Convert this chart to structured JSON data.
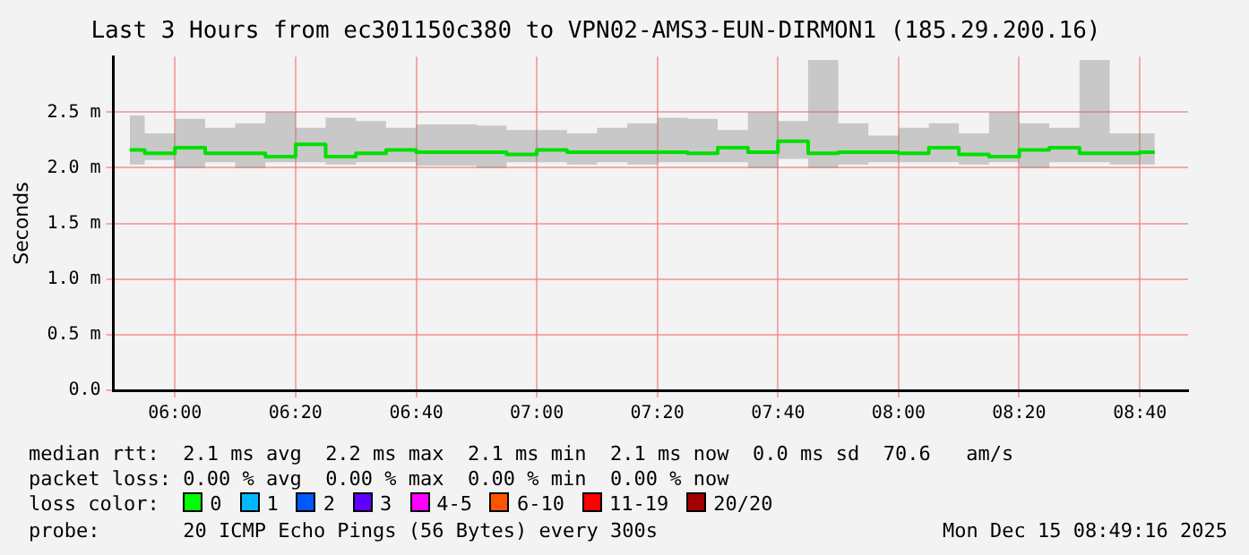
{
  "chart_data": {
    "type": "step",
    "title": "Last 3 Hours from ec301150c380 to VPN02-AMS3-EUN-DIRMON1 (185.29.200.16)",
    "ylabel": "Seconds",
    "x": [
      5.875,
      5.958,
      6.042,
      6.125,
      6.208,
      6.292,
      6.375,
      6.458,
      6.542,
      6.625,
      6.708,
      6.792,
      6.875,
      6.958,
      7.042,
      7.125,
      7.208,
      7.292,
      7.375,
      7.458,
      7.542,
      7.625,
      7.708,
      7.792,
      7.875,
      7.958,
      8.042,
      8.125,
      8.208,
      8.292,
      8.375,
      8.458,
      8.542,
      8.625,
      8.708
    ],
    "series": [
      {
        "color": "#00e000",
        "values": [
          2.16,
          2.13,
          2.18,
          2.13,
          2.13,
          2.1,
          2.21,
          2.1,
          2.13,
          2.16,
          2.14,
          2.14,
          2.14,
          2.12,
          2.16,
          2.14,
          2.14,
          2.14,
          2.14,
          2.13,
          2.18,
          2.14,
          2.24,
          2.13,
          2.14,
          2.14,
          2.13,
          2.18,
          2.12,
          2.1,
          2.16,
          2.18,
          2.13,
          2.13,
          2.14
        ],
        "lower": [
          2.03,
          2.07,
          2.0,
          2.05,
          2.0,
          2.05,
          2.05,
          2.03,
          2.05,
          2.05,
          2.02,
          2.02,
          2.0,
          2.05,
          2.05,
          2.03,
          2.05,
          2.03,
          2.05,
          2.05,
          2.05,
          2.0,
          2.08,
          2.0,
          2.03,
          2.05,
          2.05,
          2.05,
          2.03,
          2.05,
          2.0,
          2.05,
          2.05,
          2.03,
          2.03
        ],
        "upper": [
          2.47,
          2.31,
          2.44,
          2.36,
          2.4,
          2.5,
          2.36,
          2.45,
          2.42,
          2.36,
          2.39,
          2.39,
          2.38,
          2.34,
          2.34,
          2.31,
          2.36,
          2.4,
          2.45,
          2.44,
          2.34,
          2.5,
          2.42,
          2.97,
          2.4,
          2.29,
          2.36,
          2.4,
          2.31,
          2.5,
          2.4,
          2.36,
          2.97,
          2.31,
          2.31
        ]
      }
    ],
    "xlim": [
      5.83,
      8.8
    ],
    "xticks": [
      {
        "value": 6,
        "label": "06:00"
      },
      {
        "value": 6.333,
        "label": "06:20"
      },
      {
        "value": 6.667,
        "label": "06:40"
      },
      {
        "value": 7,
        "label": "07:00"
      },
      {
        "value": 7.333,
        "label": "07:20"
      },
      {
        "value": 7.667,
        "label": "07:40"
      },
      {
        "value": 8,
        "label": "08:00"
      },
      {
        "value": 8.333,
        "label": "08:20"
      },
      {
        "value": 8.667,
        "label": "08:40"
      }
    ],
    "ylim": [
      0,
      3.0
    ],
    "yticks": [
      {
        "value": 0,
        "label": "0.0"
      },
      {
        "value": 0.5,
        "label": "0.5 m"
      },
      {
        "value": 1.0,
        "label": "1.0 m"
      },
      {
        "value": 1.5,
        "label": "1.5 m"
      },
      {
        "value": 2.0,
        "label": "2.0 m"
      },
      {
        "value": 2.5,
        "label": "2.5 m"
      }
    ],
    "grid": true,
    "legend": false,
    "marker": "none",
    "line_style": "solid",
    "annotations": [
      "median rtt:  2.1 ms avg  2.2 ms max  2.1 ms min  2.1 ms now  0.0 ms sd  70.6   am/s",
      "packet loss: 0.00 % avg  0.00 % max  0.00 % min  0.00 % now",
      "loss color:",
      "0",
      "1",
      "2",
      "3",
      "4-5",
      "6-10",
      "11-19",
      "20/20",
      "probe:       20 ICMP Echo Pings (56 Bytes) every 300s",
      "Mon Dec 15 08:49:16 2025"
    ]
  }
}
